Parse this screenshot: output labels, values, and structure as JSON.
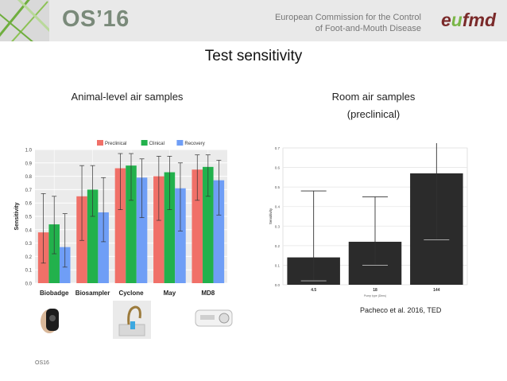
{
  "header": {
    "logo_text": "OS’16",
    "commission_line1": "European Commission for the Control",
    "commission_line2": "of Foot-and-Mouth Disease",
    "brand": {
      "part1": "e",
      "circ": "u",
      "part2": "fmd"
    },
    "colors": {
      "stripe_green": "#6fae3e",
      "brand_red": "#7a2a2a",
      "brand_green": "#7ab648"
    }
  },
  "slide": {
    "title": "Test sensitivity",
    "left_subtitle": "Animal-level air samples",
    "right_subtitle_line1": "Room air samples",
    "right_subtitle_line2": "(preclinical)",
    "citation": "Pacheco et al. 2016, TED",
    "footer": "OS16"
  },
  "chart_data": [
    {
      "type": "bar",
      "title": "",
      "xlabel": "",
      "ylabel": "Sensitivity",
      "ylim": [
        0,
        1.0
      ],
      "yticks": [
        "0.0",
        "0.1",
        "0.2",
        "0.3",
        "0.4",
        "0.5",
        "0.6",
        "0.7",
        "0.8",
        "0.9",
        "1.0"
      ],
      "legend_position": "top",
      "categories": [
        "Biobadge",
        "Biosampler",
        "Cyclone",
        "May",
        "MD8"
      ],
      "series": [
        {
          "name": "Preclinical",
          "color": "#f07068",
          "values": [
            0.38,
            0.65,
            0.86,
            0.8,
            0.85
          ],
          "err_low": [
            0.15,
            0.32,
            0.55,
            0.47,
            0.62
          ],
          "err_high": [
            0.67,
            0.88,
            0.97,
            0.95,
            0.96
          ]
        },
        {
          "name": "Clinical",
          "color": "#22b14c",
          "values": [
            0.44,
            0.7,
            0.88,
            0.83,
            0.87
          ],
          "err_low": [
            0.22,
            0.5,
            0.62,
            0.55,
            0.65
          ],
          "err_high": [
            0.65,
            0.88,
            0.97,
            0.95,
            0.96
          ]
        },
        {
          "name": "Recovery",
          "color": "#6f9ef6",
          "values": [
            0.27,
            0.53,
            0.79,
            0.71,
            0.77
          ],
          "err_low": [
            0.12,
            0.31,
            0.49,
            0.39,
            0.51
          ],
          "err_high": [
            0.52,
            0.79,
            0.93,
            0.9,
            0.92
          ]
        }
      ],
      "grid": true
    },
    {
      "type": "bar",
      "title": "",
      "xlabel": "Pump type (Dims)",
      "ylabel": "Sensitivity",
      "ylim": [
        0,
        0.7
      ],
      "yticks": [
        "0.0",
        "0.1",
        "0.2",
        "0.3",
        "0.4",
        "0.5",
        "0.6",
        "0.7"
      ],
      "categories": [
        "4.5",
        "18",
        "144"
      ],
      "series": [
        {
          "name": "",
          "color": "#2b2b2b",
          "values": [
            0.14,
            0.22,
            0.57
          ],
          "err_low": [
            0.02,
            0.1,
            0.23
          ],
          "err_high": [
            0.48,
            0.45,
            0.76
          ]
        }
      ],
      "grid": true
    }
  ],
  "photos": [
    {
      "icon": "biobadge-device-photo"
    },
    {
      "icon": "cyclone-sampler-photo"
    },
    {
      "icon": "md8-sampler-photo"
    }
  ]
}
